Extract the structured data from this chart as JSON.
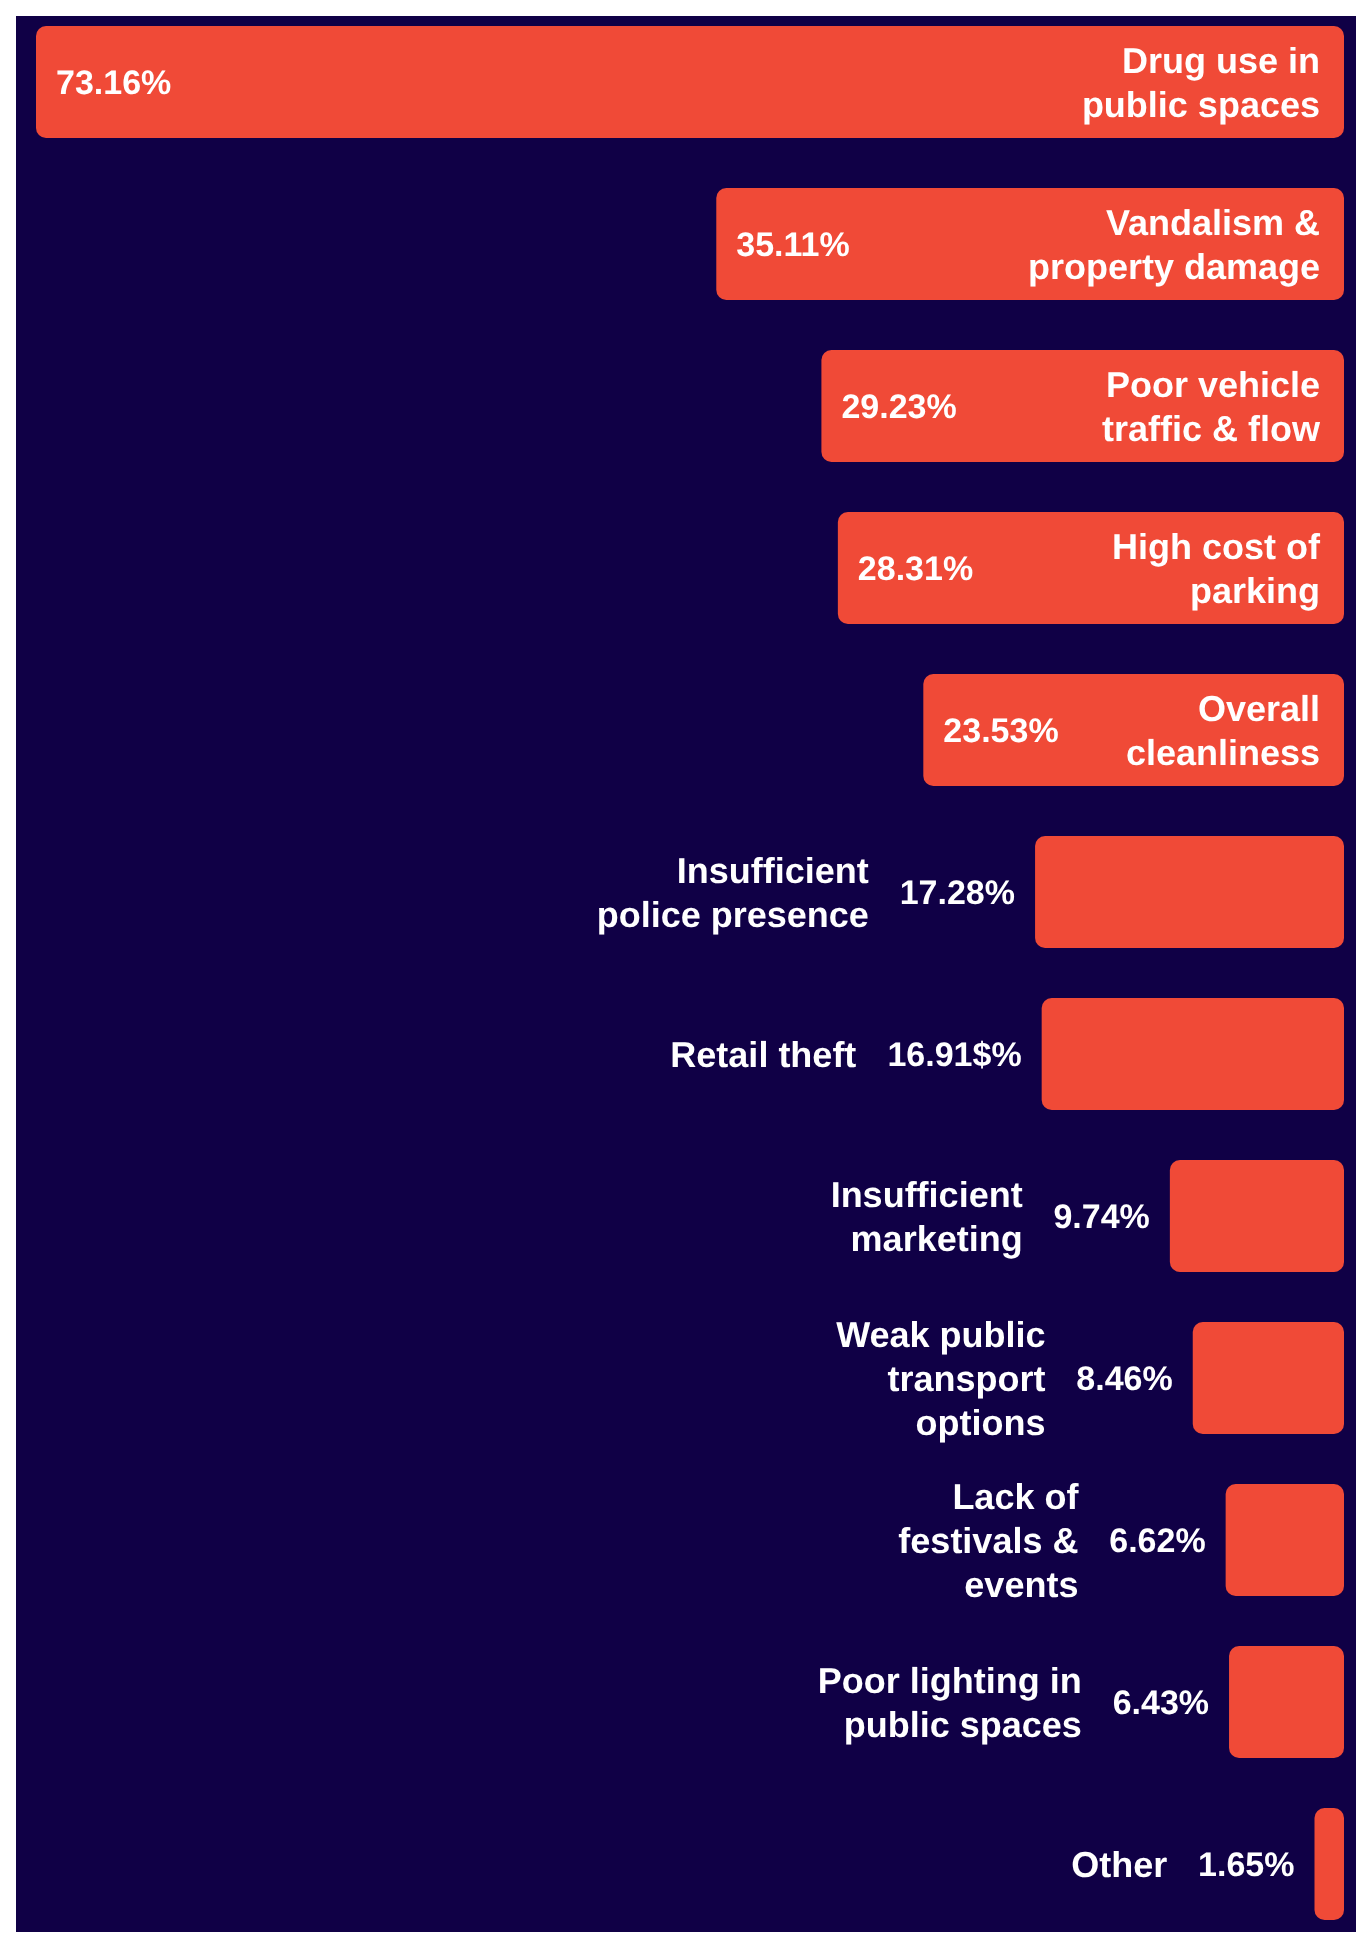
{
  "chart_data": {
    "type": "bar",
    "orientation": "horizontal",
    "categories": [
      "Drug use in public spaces",
      "Vandalism & property damage",
      "Poor vehicle traffic & flow",
      "High cost of parking",
      "Overall cleanliness",
      "Insufficient police presence",
      "Retail theft",
      "Insufficient marketing",
      "Weak public transport options",
      "Lack of festivals & events",
      "Poor lighting in public spaces",
      "Other"
    ],
    "values": [
      73.16,
      35.11,
      29.23,
      28.31,
      23.53,
      17.28,
      16.91,
      9.74,
      8.46,
      6.62,
      6.43,
      1.65
    ],
    "value_labels": [
      "73.16%",
      "35.11%",
      "29.23%",
      "28.31%",
      "23.53%",
      "17.28%",
      "16.91$%",
      "9.74%",
      "8.46%",
      "6.62%",
      "6.43%",
      "1.65%"
    ],
    "color": "#f04a37"
  }
}
